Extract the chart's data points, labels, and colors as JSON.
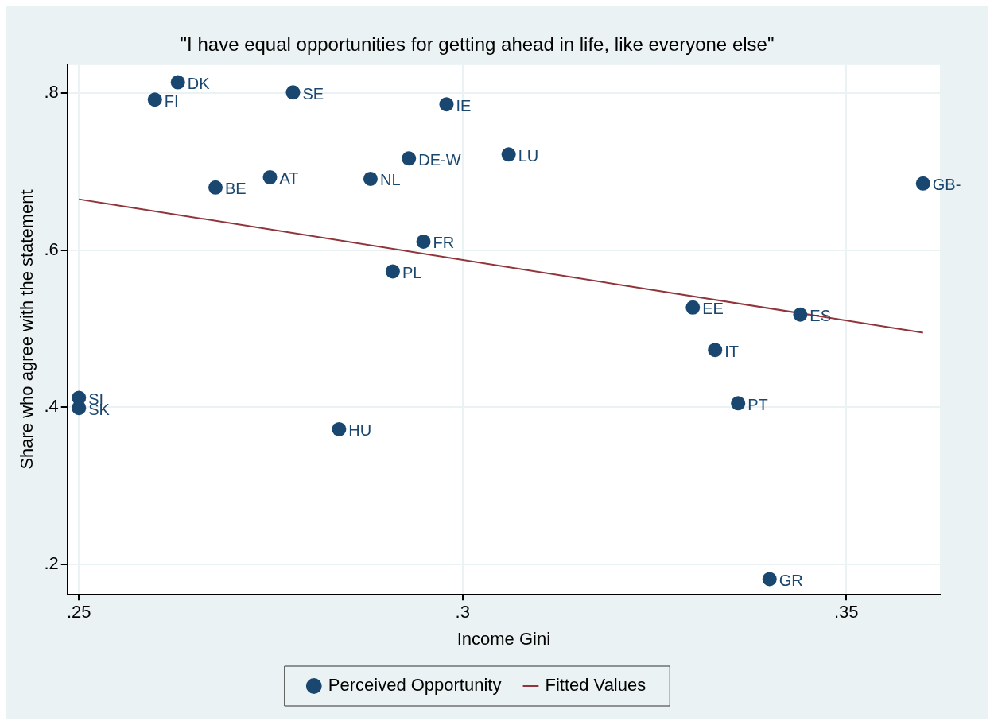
{
  "chart_data": {
    "type": "scatter",
    "title": "\"I have equal opportunities for getting ahead in life, like everyone else\"",
    "xlabel": "Income Gini",
    "ylabel": "Share who agree with the statement",
    "xlim": [
      0.2485,
      0.3622
    ],
    "ylim": [
      0.162,
      0.836
    ],
    "xticks": [
      {
        "value": 0.25,
        "label": ".25"
      },
      {
        "value": 0.3,
        "label": ".3"
      },
      {
        "value": 0.35,
        "label": ".35"
      }
    ],
    "yticks": [
      {
        "value": 0.2,
        "label": ".2"
      },
      {
        "value": 0.4,
        "label": ".4"
      },
      {
        "value": 0.6,
        "label": ".6"
      },
      {
        "value": 0.8,
        "label": ".8"
      }
    ],
    "grid": true,
    "legend": "bottom",
    "marker": "circle",
    "series": [
      {
        "name": "Perceived Opportunity",
        "type": "scatter",
        "color": "#1a476f",
        "x": [
          0.2629,
          0.2599,
          0.2779,
          0.2979,
          0.293,
          0.306,
          0.2749,
          0.288,
          0.2678,
          0.36,
          0.2949,
          0.2909,
          0.33,
          0.344,
          0.3329,
          0.3359,
          0.25,
          0.25,
          0.2839,
          0.34
        ],
        "values": [
          0.814,
          0.792,
          0.801,
          0.786,
          0.717,
          0.722,
          0.693,
          0.691,
          0.68,
          0.685,
          0.611,
          0.573,
          0.527,
          0.518,
          0.473,
          0.405,
          0.412,
          0.399,
          0.372,
          0.181
        ]
      },
      {
        "name": "Fitted Values",
        "type": "line",
        "color": "#90353b",
        "line_style": "solid",
        "marker": "none",
        "x": [
          0.25,
          0.36
        ],
        "values": [
          0.665,
          0.495
        ]
      }
    ],
    "annotations": [
      {
        "text": "DK",
        "x": 0.2629,
        "y": 0.814
      },
      {
        "text": "FI",
        "x": 0.2599,
        "y": 0.792
      },
      {
        "text": "SE",
        "x": 0.2779,
        "y": 0.801
      },
      {
        "text": "IE",
        "x": 0.2979,
        "y": 0.786
      },
      {
        "text": "DE-W",
        "x": 0.293,
        "y": 0.717
      },
      {
        "text": "LU",
        "x": 0.306,
        "y": 0.722
      },
      {
        "text": "AT",
        "x": 0.2749,
        "y": 0.693
      },
      {
        "text": "NL",
        "x": 0.288,
        "y": 0.691
      },
      {
        "text": "BE",
        "x": 0.2678,
        "y": 0.68
      },
      {
        "text": "GB-",
        "x": 0.36,
        "y": 0.685
      },
      {
        "text": "FR",
        "x": 0.2949,
        "y": 0.611
      },
      {
        "text": "PL",
        "x": 0.2909,
        "y": 0.573
      },
      {
        "text": "EE",
        "x": 0.33,
        "y": 0.527
      },
      {
        "text": "ES",
        "x": 0.344,
        "y": 0.518
      },
      {
        "text": "IT",
        "x": 0.3329,
        "y": 0.473
      },
      {
        "text": "PT",
        "x": 0.3359,
        "y": 0.405
      },
      {
        "text": "SI",
        "x": 0.25,
        "y": 0.412
      },
      {
        "text": "SK",
        "x": 0.25,
        "y": 0.399
      },
      {
        "text": "HU",
        "x": 0.2839,
        "y": 0.372
      },
      {
        "text": "GR",
        "x": 0.34,
        "y": 0.181
      }
    ]
  }
}
